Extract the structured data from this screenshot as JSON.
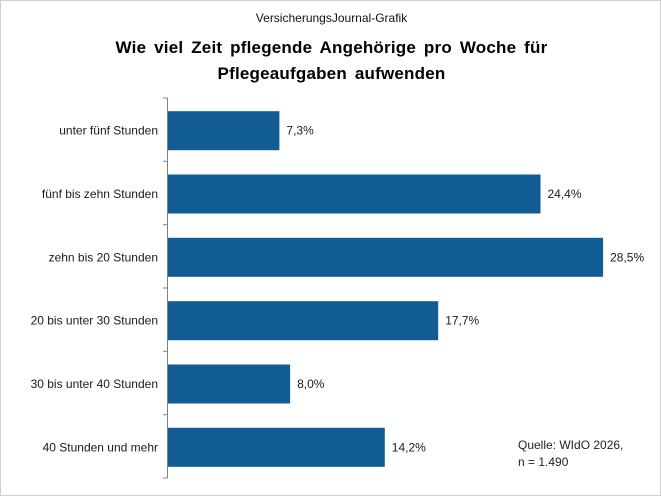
{
  "header": {
    "credit": "VersicherungsJournal-Grafik"
  },
  "chart_data": {
    "type": "bar",
    "orientation": "horizontal",
    "title": "Wie viel Zeit pflegende Angehörige pro Woche für Pflegeaufgaben aufwenden",
    "categories": [
      "unter fünf Stunden",
      "fünf bis zehn Stunden",
      "zehn bis 20 Stunden",
      "20 bis unter 30 Stunden",
      "30 bis unter 40 Stunden",
      "40 Stunden und mehr"
    ],
    "values": [
      7.3,
      24.4,
      28.5,
      17.7,
      8.0,
      14.2
    ],
    "value_labels": [
      "7,3%",
      "24,4%",
      "28,5%",
      "17,7%",
      "8,0%",
      "14,2%"
    ],
    "xlim": [
      0,
      30
    ],
    "grid": false,
    "legend": "none",
    "annotations": [
      "Quelle: WIdO 2026,",
      "n = 1.490"
    ],
    "colors": {
      "bar": "#115c95",
      "axis": "#808080"
    }
  }
}
